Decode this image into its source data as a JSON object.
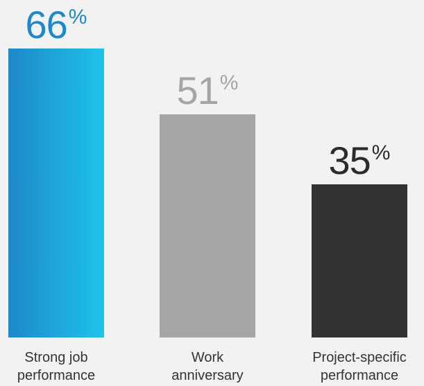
{
  "chart_data": {
    "type": "bar",
    "categories": [
      "Strong job\nperformance",
      "Work\nanniversary",
      "Project-specific\nperformance"
    ],
    "values": [
      66,
      51,
      35
    ],
    "value_suffix": "%",
    "ylim": [
      0,
      70
    ],
    "grid": false,
    "colors": {
      "bar_0_gradient": [
        "#1e88c8",
        "#1ec3ea"
      ],
      "bar_1": "#a5a5a5",
      "bar_2": "#333333",
      "label_0": "#1e88c8",
      "label_1": "#a5a5a5",
      "label_2": "#2b2b2b"
    }
  }
}
